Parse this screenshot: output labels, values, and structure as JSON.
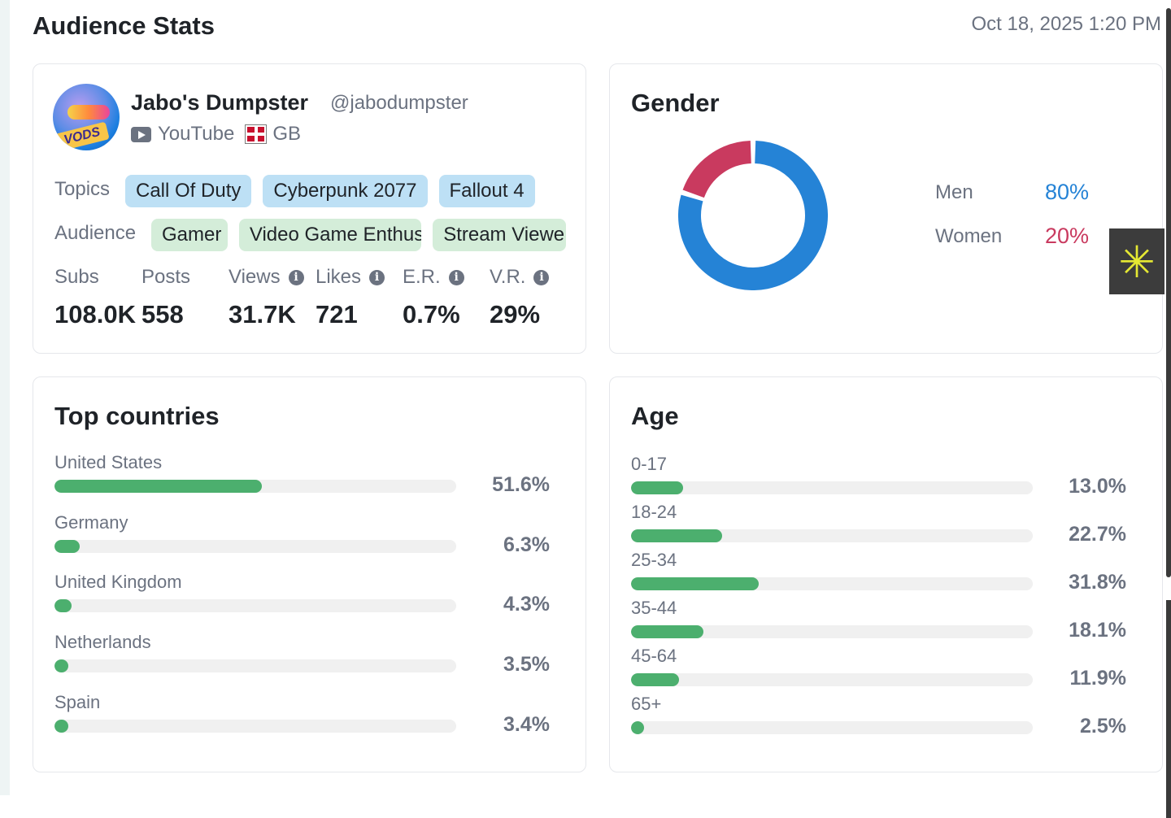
{
  "header": {
    "title": "Audience Stats",
    "timestamp": "Oct 18, 2025 1:20 PM"
  },
  "profile": {
    "avatar_text": "VODS",
    "name": "Jabo's Dumpster",
    "handle": "@jabodumpster",
    "platform": "YouTube",
    "platform_icon": "youtube-icon",
    "country": "GB",
    "country_icon": "uk-flag-icon",
    "topics_label": "Topics",
    "topics": [
      "Call Of Duty",
      "Cyberpunk 2077",
      "Fallout 4"
    ],
    "audience_label": "Audience",
    "audience": [
      "Gamer",
      "Video Game Enthus",
      "Stream Viewe"
    ],
    "stats": [
      {
        "label": "Subs",
        "value": "108.0K",
        "info": false
      },
      {
        "label": "Posts",
        "value": "558",
        "info": false
      },
      {
        "label": "Views",
        "value": "31.7K",
        "info": true
      },
      {
        "label": "Likes",
        "value": "721",
        "info": true
      },
      {
        "label": "E.R.",
        "value": "0.7%",
        "info": true
      },
      {
        "label": "V.R.",
        "value": "29%",
        "info": true
      }
    ]
  },
  "gender": {
    "title": "Gender",
    "items": [
      {
        "label": "Men",
        "value": "80%",
        "fraction": 0.8,
        "color": "#2583d6"
      },
      {
        "label": "Women",
        "value": "20%",
        "fraction": 0.2,
        "color": "#c93a5f"
      }
    ]
  },
  "countries": {
    "title": "Top countries",
    "items": [
      {
        "label": "United States",
        "value": "51.6%",
        "pct": 51.6
      },
      {
        "label": "Germany",
        "value": "6.3%",
        "pct": 6.3
      },
      {
        "label": "United Kingdom",
        "value": "4.3%",
        "pct": 4.3
      },
      {
        "label": "Netherlands",
        "value": "3.5%",
        "pct": 3.5
      },
      {
        "label": "Spain",
        "value": "3.4%",
        "pct": 3.4
      }
    ]
  },
  "age": {
    "title": "Age",
    "items": [
      {
        "label": "0-17",
        "value": "13.0%",
        "pct": 13.0
      },
      {
        "label": "18-24",
        "value": "22.7%",
        "pct": 22.7
      },
      {
        "label": "25-34",
        "value": "31.8%",
        "pct": 31.8
      },
      {
        "label": "35-44",
        "value": "18.1%",
        "pct": 18.1
      },
      {
        "label": "45-64",
        "value": "11.9%",
        "pct": 11.9
      },
      {
        "label": "65+",
        "value": "2.5%",
        "pct": 2.5
      }
    ]
  },
  "colors": {
    "bar_fill": "#4caf6e",
    "bar_track": "#f0f0f0",
    "topic_chip": "#bde0f5",
    "audience_chip": "#d4edd9"
  },
  "floating_button_icon": "asterisk-icon"
}
